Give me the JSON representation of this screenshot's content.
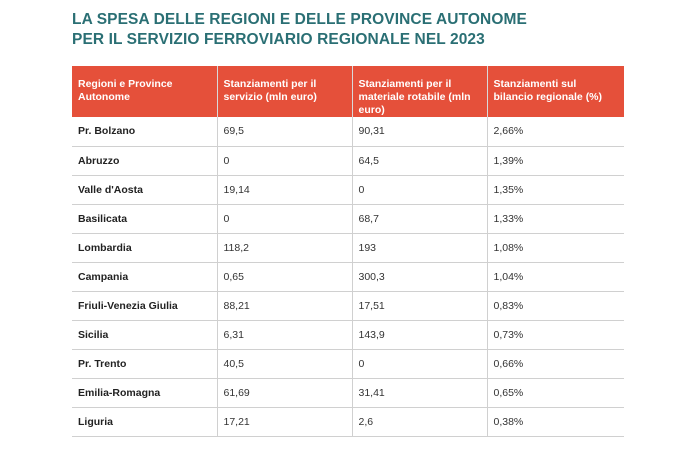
{
  "title": {
    "line1": "LA SPESA DELLE REGIONI E DELLE PROVINCE AUTONOME",
    "line2": "PER IL SERVIZIO FERROVIARIO REGIONALE NEL 2023"
  },
  "table": {
    "headers": [
      "Regioni e Province Autonome",
      "Stanziamenti per il servizio (mln euro)",
      "Stanziamenti per il materiale rotabile (mln euro)",
      "Stanziamenti sul bilancio regionale (%)"
    ],
    "rows": [
      [
        "Pr. Bolzano",
        "69,5",
        "90,31",
        "2,66%"
      ],
      [
        "Abruzzo",
        "0",
        "64,5",
        "1,39%"
      ],
      [
        "Valle d'Aosta",
        "19,14",
        "0",
        "1,35%"
      ],
      [
        "Basilicata",
        "0",
        "68,7",
        "1,33%"
      ],
      [
        "Lombardia",
        "118,2",
        "193",
        "1,08%"
      ],
      [
        "Campania",
        "0,65",
        "300,3",
        "1,04%"
      ],
      [
        "Friuli-Venezia Giulia",
        "88,21",
        "17,51",
        "0,83%"
      ],
      [
        "Sicilia",
        "6,31",
        "143,9",
        "0,73%"
      ],
      [
        "Pr. Trento",
        "40,5",
        "0",
        "0,66%"
      ],
      [
        "Emilia-Romagna",
        "61,69",
        "31,41",
        "0,65%"
      ],
      [
        "Liguria",
        "17,21",
        "2,6",
        "0,38%"
      ]
    ]
  },
  "colors": {
    "title": "#2a6f74",
    "header_bg": "#e5503a",
    "header_text": "#ffffff",
    "grid": "#d0d0d0"
  }
}
